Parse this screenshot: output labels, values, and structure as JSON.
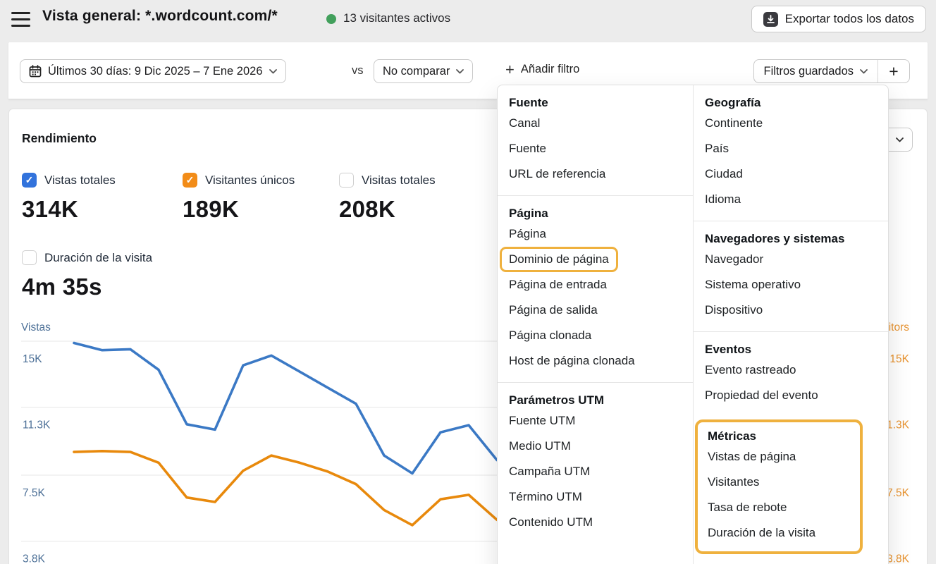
{
  "header": {
    "title": "Vista general: *.wordcount.com/*",
    "active_visitors": "13 visitantes activos",
    "active_dot_color": "#42a05c",
    "export_label": "Exportar todos los datos"
  },
  "filter_bar": {
    "date_range": "Últimos 30 días: 9 Dic 2025 – 7 Ene 2026",
    "vs_label": "vs",
    "compare": "No comparar",
    "add_filter": "Añadir filtro",
    "saved_filters": "Filtros guardados",
    "new_filter_plus": "+"
  },
  "performance": {
    "title": "Rendimiento",
    "metrics": [
      {
        "label": "Vistas totales",
        "value": "314K",
        "checked": true,
        "color": "#3273dc"
      },
      {
        "label": "Visitantes únicos",
        "value": "189K",
        "checked": true,
        "color": "#f28c18"
      },
      {
        "label": "Visitas totales",
        "value": "208K",
        "checked": false,
        "color": null
      },
      {
        "label": "Duración de la visita",
        "value": "4m 35s",
        "checked": false,
        "color": null
      }
    ]
  },
  "chart_data": {
    "type": "line",
    "left_axis_label": "Vistas",
    "right_axis_label": "Visitors",
    "axis_color_left": "#4d7097",
    "axis_color_right": "#e8932f",
    "grid": true,
    "gridline_color": "#ececec",
    "y_ticks": [
      "15K",
      "11.3K",
      "7.5K",
      "3.8K"
    ],
    "y_tick_values": [
      15000,
      11300,
      7500,
      3800
    ],
    "x": [
      1,
      2,
      3,
      4,
      5,
      6,
      7,
      8,
      9,
      10,
      11,
      12,
      13,
      14,
      15,
      16
    ],
    "series": [
      {
        "name": "Vistas",
        "color": "#3b79c5",
        "values_k": [
          14.9,
          14.5,
          14.55,
          13.4,
          10.35,
          10.05,
          13.65,
          14.2,
          13.3,
          12.4,
          11.5,
          8.6,
          7.6,
          9.9,
          10.3,
          8.35
        ]
      },
      {
        "name": "Visitantes",
        "color": "#e8890c",
        "values_k": [
          8.8,
          8.85,
          8.8,
          8.2,
          6.25,
          6.0,
          7.75,
          8.6,
          8.2,
          7.7,
          7.0,
          5.55,
          4.7,
          6.15,
          6.4,
          5.0
        ]
      }
    ],
    "note": "x-axis labels hidden behind open filter menu; right portion of lines covered by menu"
  },
  "filter_menu": {
    "highlight_color": "#efb13e",
    "columns": [
      {
        "sections": [
          {
            "title": "Fuente",
            "items": [
              {
                "label": "Canal"
              },
              {
                "label": "Fuente"
              },
              {
                "label": "URL de referencia"
              }
            ]
          },
          {
            "title": "Página",
            "items": [
              {
                "label": "Página"
              },
              {
                "label": "Dominio de página",
                "highlighted": true
              },
              {
                "label": "Página de entrada"
              },
              {
                "label": "Página de salida"
              },
              {
                "label": "Página clonada"
              },
              {
                "label": "Host de página clonada"
              }
            ]
          },
          {
            "title": "Parámetros UTM",
            "items": [
              {
                "label": "Fuente UTM"
              },
              {
                "label": "Medio UTM"
              },
              {
                "label": "Campaña UTM"
              },
              {
                "label": "Término UTM"
              },
              {
                "label": "Contenido UTM"
              }
            ]
          }
        ]
      },
      {
        "sections": [
          {
            "title": "Geografía",
            "items": [
              {
                "label": "Continente"
              },
              {
                "label": "País"
              },
              {
                "label": "Ciudad"
              },
              {
                "label": "Idioma"
              }
            ]
          },
          {
            "title": "Navegadores y sistemas",
            "items": [
              {
                "label": "Navegador"
              },
              {
                "label": "Sistema operativo"
              },
              {
                "label": "Dispositivo"
              }
            ]
          },
          {
            "title": "Eventos",
            "items": [
              {
                "label": "Evento rastreado"
              },
              {
                "label": "Propiedad del evento"
              }
            ]
          },
          {
            "title": "Métricas",
            "highlighted": true,
            "items": [
              {
                "label": "Vistas de página"
              },
              {
                "label": "Visitantes"
              },
              {
                "label": "Tasa de rebote"
              },
              {
                "label": "Duración de la visita"
              }
            ]
          }
        ]
      }
    ]
  }
}
